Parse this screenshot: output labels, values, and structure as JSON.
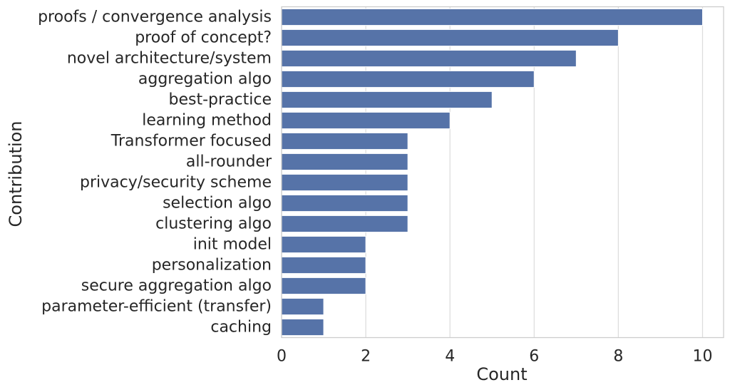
{
  "chart_data": {
    "type": "bar",
    "orientation": "horizontal",
    "xlabel": "Count",
    "ylabel": "Contribution",
    "xlim": [
      0,
      10.5
    ],
    "x_ticks": [
      0,
      2,
      4,
      6,
      8,
      10
    ],
    "grid": "vertical",
    "bar_color": "#5673a8",
    "grid_color": "#dddddd",
    "categories": [
      "proofs / convergence analysis",
      "proof of concept?",
      "novel architecture/system",
      "aggregation algo",
      "best-practice",
      "learning method",
      "Transformer focused",
      "all-rounder",
      "privacy/security scheme",
      "selection algo",
      "clustering algo",
      "init model",
      "personalization",
      "secure aggregation algo",
      "parameter-efficient (transfer)",
      "caching"
    ],
    "values": [
      10,
      8,
      7,
      6,
      5,
      4,
      3,
      3,
      3,
      3,
      3,
      2,
      2,
      2,
      1,
      1
    ]
  }
}
